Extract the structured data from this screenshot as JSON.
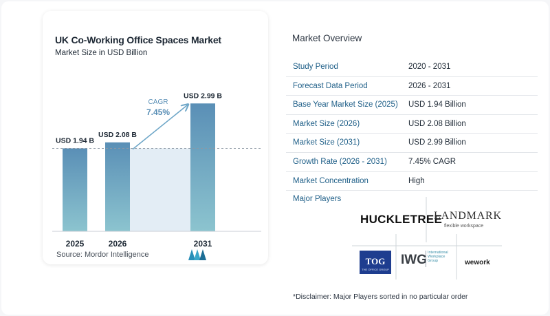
{
  "chart_data": {
    "type": "bar",
    "title": "UK Co-Working Office Spaces Market",
    "subtitle": "Market Size in USD Billion",
    "categories": [
      "2025",
      "2026",
      "2031"
    ],
    "values": [
      1.94,
      2.08,
      2.99
    ],
    "data_labels": [
      "USD 1.94 B",
      "USD 2.08 B",
      "USD 2.99 B"
    ],
    "ylim": [
      0,
      3.3
    ],
    "annotation": {
      "label": "CAGR",
      "value": "7.45%"
    },
    "reference_line_value": 1.94,
    "colors": {
      "bar_top": "#5a8fb6",
      "bar_bottom": "#8cc4cf",
      "band": "#e3edf5",
      "arrow": "#6fa7c8",
      "annotation": "#5a8fb6"
    }
  },
  "source": "Source:  Mordor Intelligence",
  "overview": {
    "title": "Market Overview",
    "rows": [
      {
        "label": "Study Period",
        "value": "2020 - 2031"
      },
      {
        "label": "Forecast Data Period",
        "value": "2026 - 2031"
      },
      {
        "label": "Base Year Market Size (2025)",
        "value": "USD 1.94 Billion"
      },
      {
        "label": "Market Size (2026)",
        "value": "USD 2.08 Billion"
      },
      {
        "label": "Market Size (2031)",
        "value": "USD 2.99 Billion"
      },
      {
        "label": "Growth Rate (2026 - 2031)",
        "value": "7.45% CAGR"
      },
      {
        "label": "Market Concentration",
        "value": "High"
      }
    ]
  },
  "players": {
    "label": "Major Players",
    "logos": {
      "huckletree": "HUCKLETREE",
      "landmark": "LANDMARK",
      "landmark_sub": "flexible workspace",
      "tog": "TOG",
      "tog_sub": "THE OFFICE GROUP",
      "iwg": "IWG",
      "iwg_sub": "International Workplace Group",
      "wework": "wework"
    }
  },
  "disclaimer": "*Disclaimer: Major Players sorted in no particular order"
}
